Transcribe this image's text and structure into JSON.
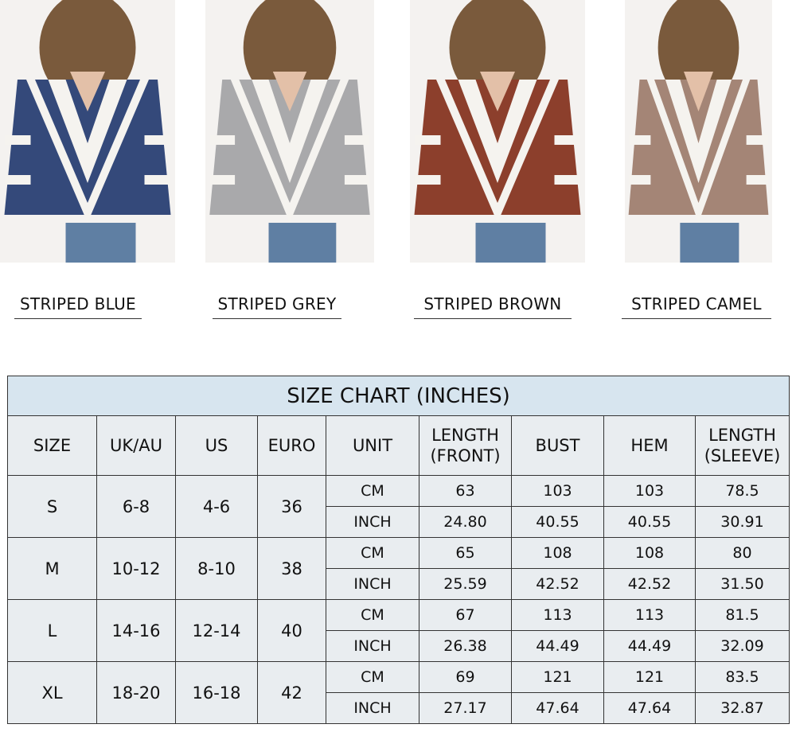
{
  "products": [
    {
      "label": "STRIPED BLUE",
      "color": "#34497a"
    },
    {
      "label": "STRIPED GREY",
      "color": "#a9a9ab"
    },
    {
      "label": "STRIPED BROWN",
      "color": "#8c3f2c"
    },
    {
      "label": "STRIPED CAMEL",
      "color": "#a48576"
    }
  ],
  "size_chart": {
    "title": "SIZE CHART (INCHES)",
    "headers": [
      "SIZE",
      "UK/AU",
      "US",
      "EURO",
      "UNIT",
      "LENGTH (FRONT)",
      "BUST",
      "HEM",
      "LENGTH (SLEEVE)"
    ],
    "rows": [
      {
        "size": "S",
        "uk": "6-8",
        "us": "4-6",
        "euro": "36",
        "cm": [
          "CM",
          "63",
          "103",
          "103",
          "78.5"
        ],
        "inch": [
          "INCH",
          "24.80",
          "40.55",
          "40.55",
          "30.91"
        ]
      },
      {
        "size": "M",
        "uk": "10-12",
        "us": "8-10",
        "euro": "38",
        "cm": [
          "CM",
          "65",
          "108",
          "108",
          "80"
        ],
        "inch": [
          "INCH",
          "25.59",
          "42.52",
          "42.52",
          "31.50"
        ]
      },
      {
        "size": "L",
        "uk": "14-16",
        "us": "12-14",
        "euro": "40",
        "cm": [
          "CM",
          "67",
          "113",
          "113",
          "81.5"
        ],
        "inch": [
          "INCH",
          "26.38",
          "44.49",
          "44.49",
          "32.09"
        ]
      },
      {
        "size": "XL",
        "uk": "18-20",
        "us": "16-18",
        "euro": "42",
        "cm": [
          "CM",
          "69",
          "121",
          "121",
          "83.5"
        ],
        "inch": [
          "INCH",
          "27.17",
          "47.64",
          "47.64",
          "32.87"
        ]
      }
    ]
  }
}
